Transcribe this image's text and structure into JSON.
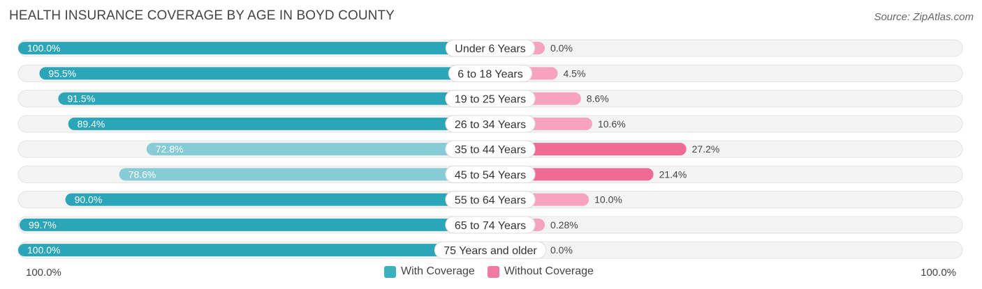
{
  "title": "HEALTH INSURANCE COVERAGE BY AGE IN BOYD COUNTY",
  "source": "Source: ZipAtlas.com",
  "axis": {
    "left_label": "100.0%",
    "right_label": "100.0%"
  },
  "colors": {
    "with_coverage": "#2aa6b8",
    "with_coverage_light": "#86ccd6",
    "without_coverage": "#f06a96",
    "without_coverage_light": "#f7a3bf",
    "track": "#efefef"
  },
  "legend": [
    {
      "label": "With Coverage",
      "color": "#3bb0bf"
    },
    {
      "label": "Without Coverage",
      "color": "#f07aa2"
    }
  ],
  "chart_data": {
    "type": "bar",
    "orientation": "horizontal-diverging",
    "title": "HEALTH INSURANCE COVERAGE BY AGE IN BOYD COUNTY",
    "categories": [
      "Under 6 Years",
      "6 to 18 Years",
      "19 to 25 Years",
      "26 to 34 Years",
      "35 to 44 Years",
      "45 to 54 Years",
      "55 to 64 Years",
      "65 to 74 Years",
      "75 Years and older"
    ],
    "series": [
      {
        "name": "With Coverage",
        "values": [
          100.0,
          95.5,
          91.5,
          89.4,
          72.8,
          78.6,
          90.0,
          99.7,
          100.0
        ],
        "labels": [
          "100.0%",
          "95.5%",
          "91.5%",
          "89.4%",
          "72.8%",
          "78.6%",
          "90.0%",
          "99.7%",
          "100.0%"
        ]
      },
      {
        "name": "Without Coverage",
        "values": [
          0.0,
          4.5,
          8.6,
          10.6,
          27.2,
          21.4,
          10.0,
          0.28,
          0.0
        ],
        "labels": [
          "0.0%",
          "4.5%",
          "8.6%",
          "10.6%",
          "27.2%",
          "21.4%",
          "10.0%",
          "0.28%",
          "0.0%"
        ]
      }
    ],
    "xlim": [
      0,
      100
    ],
    "legend_position": "bottom-center"
  }
}
